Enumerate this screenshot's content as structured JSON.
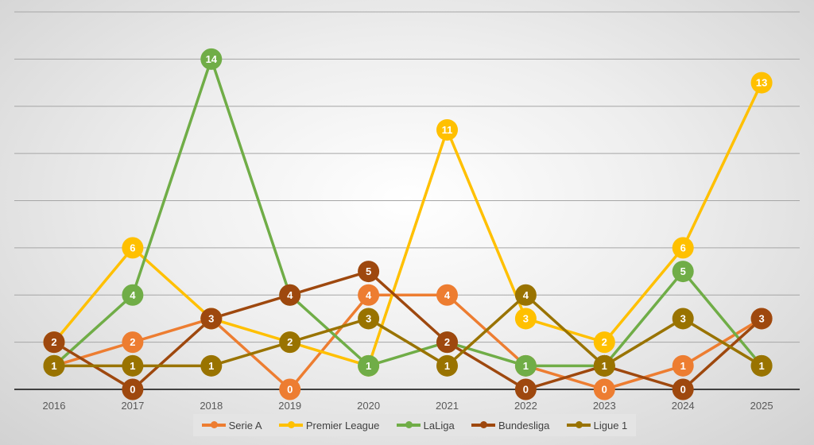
{
  "chart_data": {
    "type": "line",
    "title": "",
    "xlabel": "",
    "ylabel": "",
    "ylim": [
      0,
      16
    ],
    "grid": true,
    "gridline_step": 2,
    "legend_position": "bottom",
    "categories": [
      "2016",
      "2017",
      "2018",
      "2019",
      "2020",
      "2021",
      "2022",
      "2023",
      "2024",
      "2025"
    ],
    "series": [
      {
        "name": "Serie A",
        "color": "#ED7D31",
        "values": [
          1,
          2,
          3,
          0,
          4,
          4,
          1,
          0,
          1,
          3
        ]
      },
      {
        "name": "Premier League",
        "color": "#FFC000",
        "values": [
          2,
          6,
          3,
          2,
          1,
          11,
          3,
          2,
          6,
          13
        ]
      },
      {
        "name": "LaLiga",
        "color": "#70AD47",
        "values": [
          1,
          4,
          14,
          4,
          1,
          2,
          1,
          1,
          5,
          1
        ]
      },
      {
        "name": "Bundesliga",
        "color": "#9E480E",
        "values": [
          2,
          0,
          3,
          4,
          5,
          2,
          0,
          1,
          0,
          3
        ]
      },
      {
        "name": "Ligue 1",
        "color": "#997300",
        "values": [
          1,
          1,
          1,
          2,
          3,
          1,
          4,
          1,
          3,
          1
        ]
      }
    ]
  }
}
